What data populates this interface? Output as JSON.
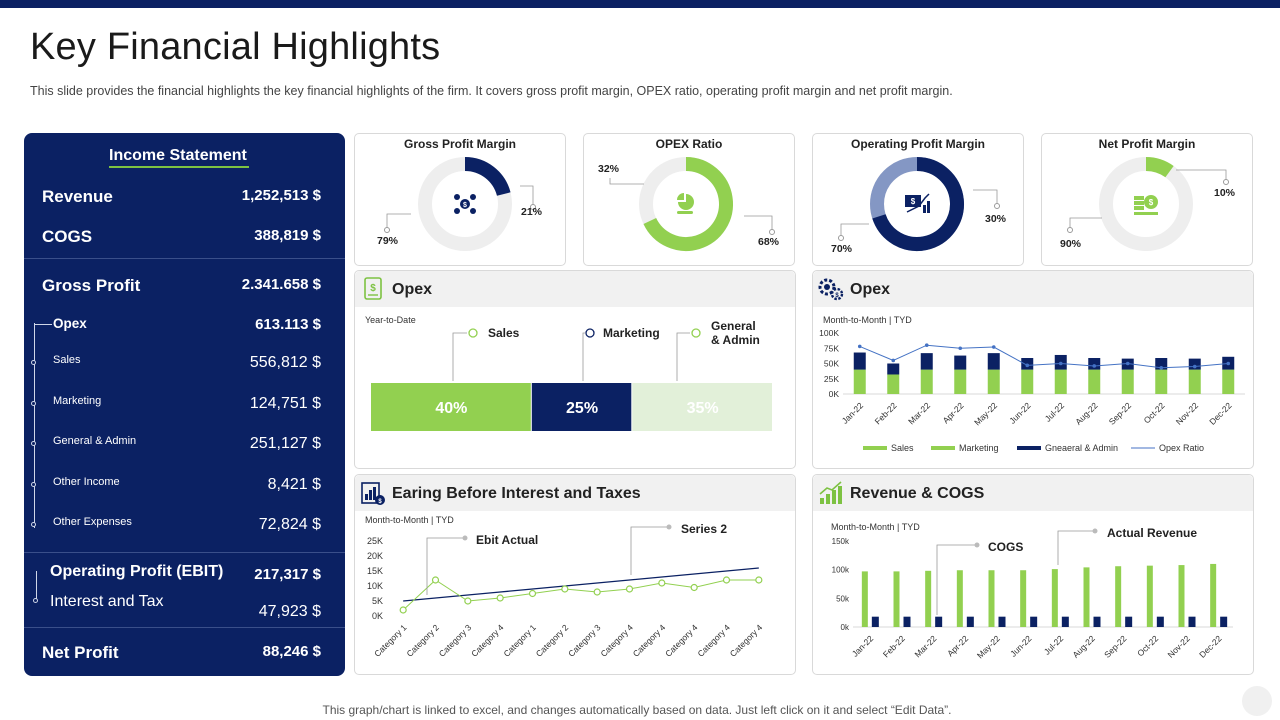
{
  "title": "Key Financial Highlights",
  "subtitle": "This slide provides  the financial highlights the key financial highlights of the firm. It covers gross profit margin, OPEX ratio, operating profit margin and net profit margin.",
  "income": {
    "title": "Income Statement",
    "rows": [
      {
        "label": "Revenue",
        "value": "1,252,513 $"
      },
      {
        "label": "COGS",
        "value": "388,819 $"
      },
      {
        "label": "Gross Profit",
        "value": "2.341.658 $"
      },
      {
        "label": "Opex",
        "value": "613.113 $"
      },
      {
        "label": "Sales",
        "value": "556,812 $"
      },
      {
        "label": "Marketing",
        "value": "124,751 $"
      },
      {
        "label": "General & Admin",
        "value": "251,127 $"
      },
      {
        "label": "Other Income",
        "value": "8,421 $"
      },
      {
        "label": "Other Expenses",
        "value": "72,824 $"
      },
      {
        "label": "Operating Profit (EBIT)",
        "value": "217,317 $"
      },
      {
        "label": "Interest  and Tax",
        "value": "47,923 $"
      },
      {
        "label": "Net Profit",
        "value": "88,246 $"
      }
    ]
  },
  "donuts": [
    {
      "title": "Gross Profit Margin",
      "a_label": "79%",
      "b_label": "21%",
      "value": 0.21,
      "color": "#0b2163",
      "icon": "dollar-network-icon"
    },
    {
      "title": "OPEX Ratio",
      "a_label": "32%",
      "b_label": "68%",
      "value": 0.68,
      "color": "#92d050",
      "icon": "pie-chart-hand-icon"
    },
    {
      "title": "Operating Profit Margin",
      "a_label": "70%",
      "b_label": "30%",
      "value": 0.7,
      "color": "#0b2163",
      "icon": "money-growth-icon"
    },
    {
      "title": "Net Profit Margin",
      "a_label": "90%",
      "b_label": "10%",
      "value": 0.1,
      "color": "#92d050",
      "icon": "money-stack-icon"
    }
  ],
  "opex_left": {
    "title": "Opex",
    "period": "Year-to-Date",
    "legend": [
      "Sales",
      "Marketing",
      "General\n& Admin"
    ],
    "segments": [
      {
        "label": "40%",
        "value": 40,
        "color": "#92d050"
      },
      {
        "label": "25%",
        "value": 25,
        "color": "#0b2163"
      },
      {
        "label": "35%",
        "value": 35,
        "color": "#e2f0d9"
      }
    ]
  },
  "opex_right": {
    "title": "Opex",
    "period": "Month-to-Month  | TYD",
    "legend": [
      "Sales",
      "Marketing",
      "Gneaeral & Admin",
      "Opex Ratio"
    ]
  },
  "ebit": {
    "title": "Earing Before Interest and Taxes",
    "period": "Month-to-Month  | TYD",
    "callouts": [
      "Ebit Actual",
      "Series 2"
    ]
  },
  "rev": {
    "title": "Revenue & COGS",
    "period": "Month-to-Month  | TYD",
    "callouts": [
      "COGS",
      "Actual Revenue"
    ]
  },
  "chart_data": [
    {
      "type": "bar",
      "id": "opex-monthly",
      "categories": [
        "Jan-22",
        "Feb-22",
        "Mar-22",
        "Apr-22",
        "May-22",
        "Jun-22",
        "Jul-22",
        "Aug-22",
        "Sep-22",
        "Oct-22",
        "Nov-22",
        "Dec-22"
      ],
      "yticks": [
        "100K",
        "75K",
        "50K",
        "25K",
        "0K"
      ],
      "ylim": [
        0,
        100000
      ],
      "series": [
        {
          "name": "Sales",
          "values": [
            40000,
            32000,
            40000,
            40000,
            40000,
            40000,
            40000,
            40000,
            40000,
            40000,
            40000,
            40000
          ],
          "color": "#92d050"
        },
        {
          "name": "Gneaeral & Admin",
          "values": [
            28000,
            18000,
            27000,
            23000,
            27000,
            19000,
            24000,
            19000,
            18000,
            19000,
            18000,
            21000
          ],
          "color": "#0b2163"
        },
        {
          "name": "Opex Ratio",
          "values": [
            78000,
            55000,
            80000,
            75000,
            77000,
            47000,
            50000,
            46000,
            50000,
            43000,
            45000,
            50000
          ],
          "color": "#4472c4"
        }
      ]
    },
    {
      "type": "line",
      "id": "ebit",
      "categories": [
        "Category 1",
        "Category 2",
        "Category 3",
        "Category 4",
        "Category 1",
        "Category 2",
        "Category 3",
        "Category 4",
        "Category 4",
        "Category 4",
        "Category 4",
        "Category 4"
      ],
      "yticks": [
        "25K",
        "20K",
        "15K",
        "10K",
        "5K",
        "0K"
      ],
      "ylim": [
        0,
        25000
      ],
      "series": [
        {
          "name": "Ebit Actual",
          "values": [
            2000,
            12000,
            5000,
            6000,
            7500,
            9000,
            8000,
            9000,
            11000,
            9500,
            12000,
            12000
          ],
          "color": "#92d050"
        },
        {
          "name": "Series 2",
          "values": [
            5000,
            6000,
            7000,
            8000,
            9000,
            10000,
            11000,
            12000,
            13000,
            14000,
            15000,
            16000
          ],
          "color": "#0b2163"
        }
      ]
    },
    {
      "type": "bar",
      "id": "revenue-cogs",
      "categories": [
        "Jan-22",
        "Feb-22",
        "Mar-22",
        "Apr-22",
        "May-22",
        "Jun-22",
        "Jul-22",
        "Aug-22",
        "Sep-22",
        "Oct-22",
        "Nov-22",
        "Dec-22"
      ],
      "yticks": [
        "150k",
        "100k",
        "50k",
        "0k"
      ],
      "ylim": [
        0,
        150000
      ],
      "series": [
        {
          "name": "Actual Revenue",
          "values": [
            97000,
            97000,
            98000,
            99000,
            99000,
            99000,
            101000,
            104000,
            106000,
            107000,
            108000,
            110000
          ],
          "color": "#92d050"
        },
        {
          "name": "COGS",
          "values": [
            18000,
            18000,
            18000,
            18000,
            18000,
            18000,
            18000,
            18000,
            18000,
            18000,
            18000,
            18000
          ],
          "color": "#0b2163"
        }
      ]
    }
  ],
  "footer": "This graph/chart is linked to excel, and changes automatically based on data. Just left click on it and select “Edit Data”."
}
